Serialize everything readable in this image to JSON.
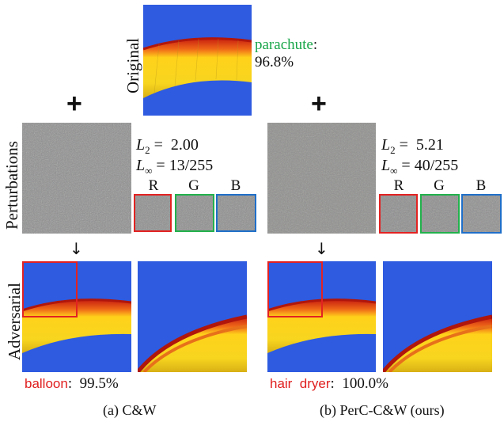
{
  "original": {
    "row_label": "Original",
    "class_name": "parachute",
    "confidence": "96.8%"
  },
  "row_labels": {
    "perturbations": "Perturbations",
    "adversarial": "Adversarial"
  },
  "symbols": {
    "plus": "+",
    "down_arrow": "↓"
  },
  "channels": [
    "R",
    "G",
    "B"
  ],
  "channel_colors": {
    "R": "#e32222",
    "G": "#22b14c",
    "B": "#1f6fc9"
  },
  "methods": [
    {
      "caption": "(a) C&W",
      "l2_symbol": "L",
      "l2_sub": "2",
      "l2_value": "2.00",
      "linf_symbol": "L",
      "linf_sub": "∞",
      "linf_value": "13/255",
      "pred_class": "balloon",
      "pred_conf": "99.5%"
    },
    {
      "caption": "(b) PerC-C&W (ours)",
      "l2_symbol": "L",
      "l2_sub": "2",
      "l2_value": "5.21",
      "linf_symbol": "L",
      "linf_sub": "∞",
      "linf_value": "40/255",
      "pred_class": "hair  dryer",
      "pred_conf": "100.0%"
    }
  ],
  "colors": {
    "sky": "#2e5be0",
    "canopy_yellow": "#f2d21c",
    "canopy_red": "#e04a1a",
    "noise_gray": "#8e8e8e",
    "box_red": "#e32222"
  }
}
